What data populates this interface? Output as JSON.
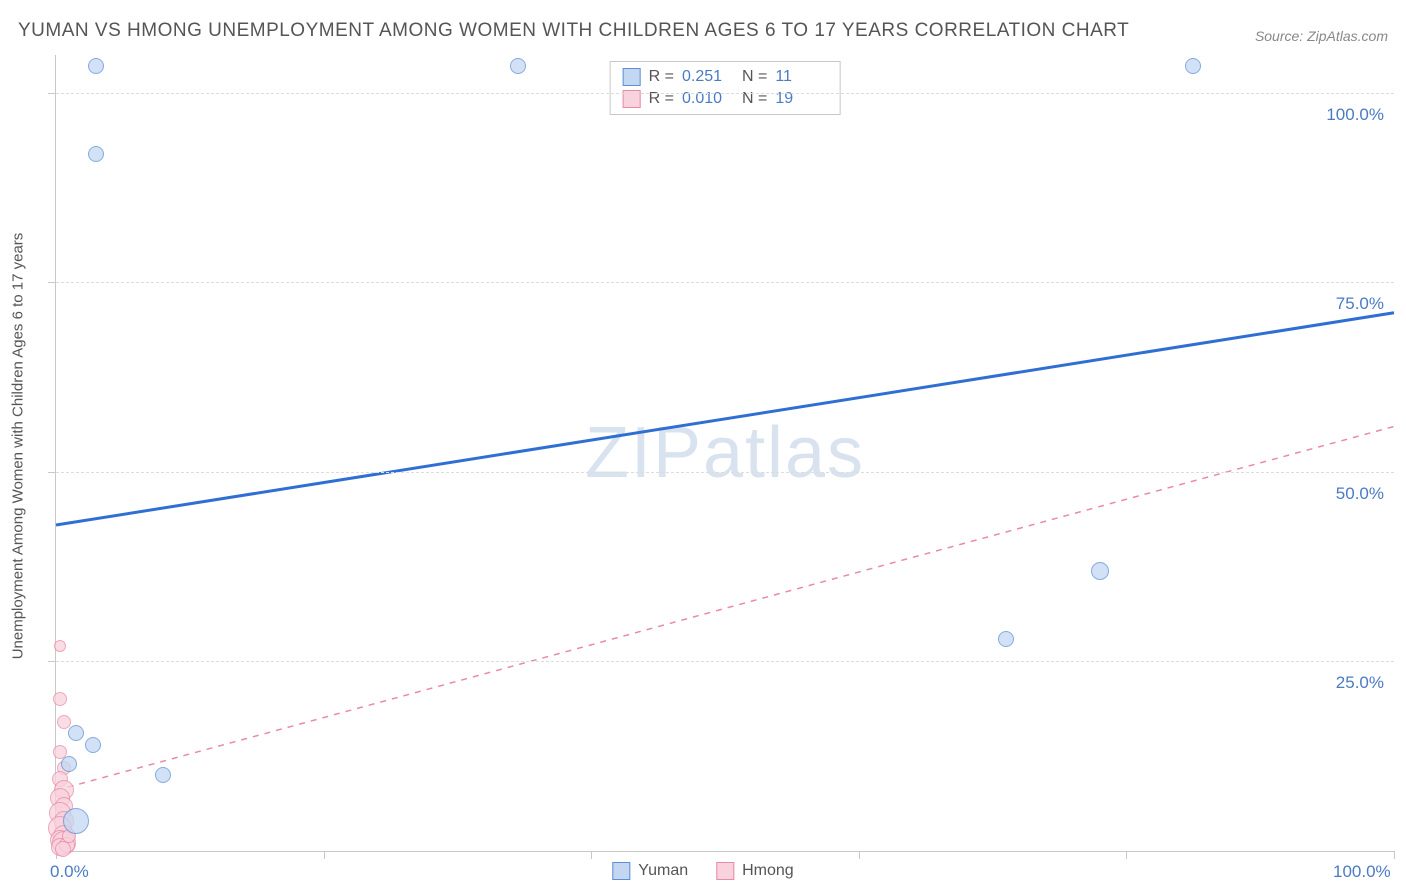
{
  "title": "YUMAN VS HMONG UNEMPLOYMENT AMONG WOMEN WITH CHILDREN AGES 6 TO 17 YEARS CORRELATION CHART",
  "source": "Source: ZipAtlas.com",
  "watermark": "ZIPatlas",
  "y_axis_label": "Unemployment Among Women with Children Ages 6 to 17 years",
  "colors": {
    "series_a_fill": "#c3d7f2",
    "series_a_stroke": "#5c8fd6",
    "series_b_fill": "#f8d2dd",
    "series_b_stroke": "#e88ba6",
    "line_a": "#2f6fd4",
    "line_b": "#e88ba6",
    "tick_label": "#4a7bc4",
    "grid": "#dddddd",
    "axis": "#c8c8c8",
    "text": "#555555"
  },
  "chart": {
    "type": "scatter",
    "xlim": [
      0,
      100
    ],
    "ylim": [
      0,
      105
    ],
    "x_ticks": [
      0,
      20,
      40,
      60,
      80,
      100
    ],
    "y_gridlines": [
      25,
      50,
      75,
      100
    ],
    "x_tick_labels": {
      "0": "0.0%",
      "100": "100.0%"
    },
    "y_tick_labels": {
      "25": "25.0%",
      "50": "50.0%",
      "75": "75.0%",
      "100": "100.0%"
    }
  },
  "legend_top": {
    "rows": [
      {
        "swatch": "a",
        "r_label": "R  =",
        "r_value": "0.251",
        "n_label": "N  =",
        "n_value": "11"
      },
      {
        "swatch": "b",
        "r_label": "R  =",
        "r_value": "0.010",
        "n_label": "N  =",
        "n_value": "19"
      }
    ]
  },
  "legend_bottom": {
    "items": [
      {
        "swatch": "a",
        "label": "Yuman"
      },
      {
        "swatch": "b",
        "label": "Hmong"
      }
    ]
  },
  "trend_lines": {
    "a": {
      "x1": 0,
      "y1": 43,
      "x2": 100,
      "y2": 71,
      "dash": false,
      "width": 3
    },
    "b": {
      "x1": 0,
      "y1": 8,
      "x2": 100,
      "y2": 56,
      "dash": true,
      "width": 1.5
    }
  },
  "points_a": [
    {
      "x": 3.0,
      "y": 103.5,
      "r": 8
    },
    {
      "x": 3.0,
      "y": 92.0,
      "r": 8
    },
    {
      "x": 34.5,
      "y": 103.5,
      "r": 8
    },
    {
      "x": 85.0,
      "y": 103.5,
      "r": 8
    },
    {
      "x": 71.0,
      "y": 28.0,
      "r": 8
    },
    {
      "x": 78.0,
      "y": 37.0,
      "r": 9
    },
    {
      "x": 1.5,
      "y": 15.5,
      "r": 8
    },
    {
      "x": 2.8,
      "y": 14.0,
      "r": 8
    },
    {
      "x": 1.0,
      "y": 11.5,
      "r": 8
    },
    {
      "x": 1.5,
      "y": 4.0,
      "r": 13
    },
    {
      "x": 8.0,
      "y": 10.0,
      "r": 8
    }
  ],
  "points_b": [
    {
      "x": 0.3,
      "y": 27.0,
      "r": 6
    },
    {
      "x": 0.3,
      "y": 20.0,
      "r": 7
    },
    {
      "x": 0.6,
      "y": 17.0,
      "r": 7
    },
    {
      "x": 0.3,
      "y": 13.0,
      "r": 7
    },
    {
      "x": 0.6,
      "y": 11.0,
      "r": 7
    },
    {
      "x": 0.3,
      "y": 9.5,
      "r": 8
    },
    {
      "x": 0.6,
      "y": 8.0,
      "r": 10
    },
    {
      "x": 0.3,
      "y": 7.0,
      "r": 10
    },
    {
      "x": 0.6,
      "y": 6.0,
      "r": 9
    },
    {
      "x": 0.3,
      "y": 5.0,
      "r": 11
    },
    {
      "x": 0.6,
      "y": 4.0,
      "r": 10
    },
    {
      "x": 0.3,
      "y": 3.0,
      "r": 12
    },
    {
      "x": 0.6,
      "y": 2.0,
      "r": 11
    },
    {
      "x": 0.3,
      "y": 1.5,
      "r": 10
    },
    {
      "x": 0.6,
      "y": 1.0,
      "r": 12
    },
    {
      "x": 0.3,
      "y": 0.5,
      "r": 9
    },
    {
      "x": 0.8,
      "y": 0.8,
      "r": 8
    },
    {
      "x": 1.0,
      "y": 2.0,
      "r": 7
    },
    {
      "x": 0.5,
      "y": 0.3,
      "r": 8
    }
  ]
}
